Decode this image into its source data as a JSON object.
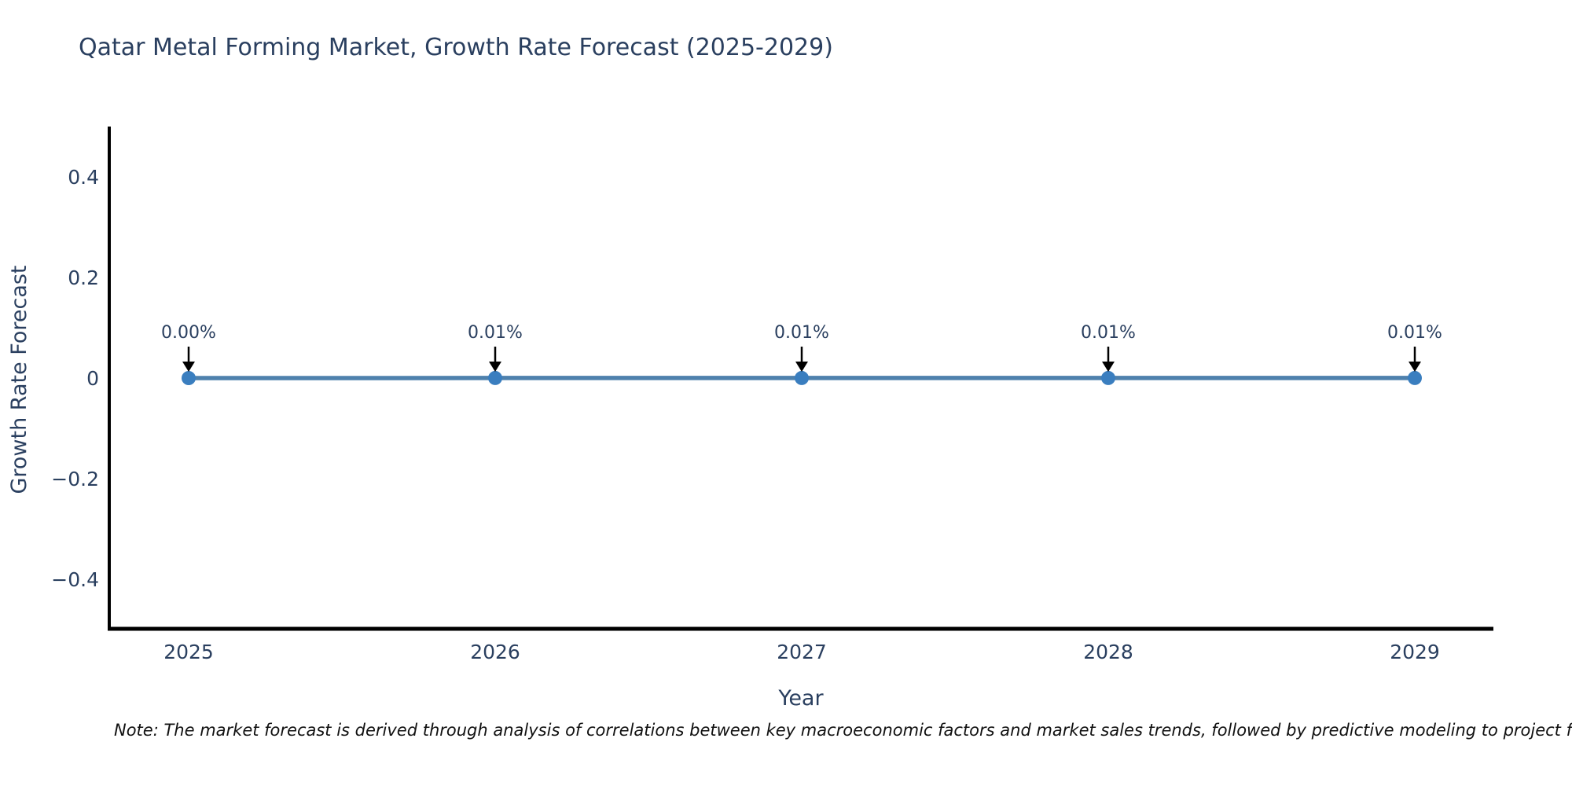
{
  "chart_data": {
    "type": "line",
    "title": "Qatar Metal Forming Market, Growth Rate Forecast (2025-2029)",
    "xlabel": "Year",
    "ylabel": "Growth Rate Forecast",
    "categories": [
      "2025",
      "2026",
      "2027",
      "2028",
      "2029"
    ],
    "values": [
      0.0,
      0.0001,
      0.0001,
      0.0001,
      0.0001
    ],
    "point_labels": [
      "0.00%",
      "0.01%",
      "0.01%",
      "0.01%",
      "0.01%"
    ],
    "ylim": [
      -0.5,
      0.5
    ],
    "yticks": [
      0.4,
      0.2,
      0,
      -0.2,
      -0.4
    ],
    "ytick_labels": [
      "0.4",
      "0.2",
      "0",
      "−0.2",
      "−0.4"
    ],
    "grid": false,
    "legend_position": "none",
    "line_color": "#4e81ad",
    "marker_color": "#3a7ebf",
    "axis_color": "#000000",
    "text_color": "#2a3f5f",
    "arrow_color": "#000000"
  },
  "note": {
    "text": "Note: The market forecast is derived through analysis of correlations between key macroeconomic factors and market sales trends, followed by predictive modeling to project future sa"
  }
}
